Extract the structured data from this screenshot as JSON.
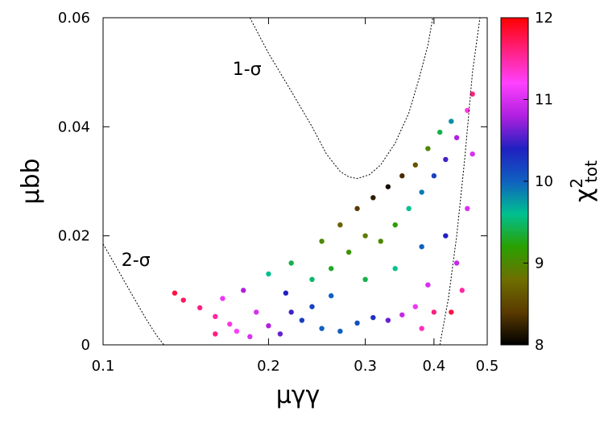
{
  "chart_data": {
    "type": "scatter",
    "title": "",
    "xlabel": "μγγ",
    "ylabel": "μbb",
    "xscale": "log",
    "xlim": [
      0.1,
      0.5
    ],
    "ylim": [
      0,
      0.06
    ],
    "xticks": [
      {
        "value": 0.1,
        "label": "0.1"
      },
      {
        "value": 0.2,
        "label": "0.2"
      },
      {
        "value": 0.3,
        "label": "0.3"
      },
      {
        "value": 0.4,
        "label": "0.4"
      },
      {
        "value": 0.5,
        "label": "0.5"
      }
    ],
    "yticks": [
      {
        "value": 0,
        "label": "0"
      },
      {
        "value": 0.02,
        "label": "0.02"
      },
      {
        "value": 0.04,
        "label": "0.04"
      },
      {
        "value": 0.06,
        "label": "0.06"
      }
    ],
    "colorbar": {
      "label_main": "χ",
      "label_sup": "2",
      "label_sub": "tot",
      "range": [
        8,
        12
      ],
      "ticks": [
        {
          "value": 8,
          "label": "8"
        },
        {
          "value": 9,
          "label": "9"
        },
        {
          "value": 10,
          "label": "10"
        },
        {
          "value": 11,
          "label": "11"
        },
        {
          "value": 12,
          "label": "12"
        }
      ],
      "colors": [
        "#000000",
        "#5a3a00",
        "#6f6f00",
        "#2aa000",
        "#00c090",
        "#1060c0",
        "#2020c0",
        "#b020e0",
        "#ff40ff",
        "#ff2080",
        "#ff0000"
      ]
    },
    "contours": [
      {
        "label": "1-σ",
        "label_at": {
          "x": 0.172,
          "y": 0.0495
        },
        "points": [
          [
            0.185,
            0.06
          ],
          [
            0.2,
            0.0535
          ],
          [
            0.22,
            0.0465
          ],
          [
            0.24,
            0.04
          ],
          [
            0.255,
            0.035
          ],
          [
            0.27,
            0.0318
          ],
          [
            0.28,
            0.0308
          ],
          [
            0.29,
            0.0305
          ],
          [
            0.305,
            0.0312
          ],
          [
            0.32,
            0.033
          ],
          [
            0.34,
            0.037
          ],
          [
            0.36,
            0.0425
          ],
          [
            0.375,
            0.0485
          ],
          [
            0.39,
            0.055
          ],
          [
            0.398,
            0.06
          ]
        ]
      },
      {
        "label": "2-σ",
        "label_at": {
          "x": 0.108,
          "y": 0.0145
        },
        "points": [
          [
            0.1,
            0.0185
          ],
          [
            0.105,
            0.0148
          ],
          [
            0.11,
            0.0112
          ],
          [
            0.115,
            0.0078
          ],
          [
            0.12,
            0.0046
          ],
          [
            0.125,
            0.0018
          ],
          [
            0.129,
            0.0
          ]
        ]
      },
      {
        "label": "",
        "points": [
          [
            0.41,
            0.0
          ],
          [
            0.425,
            0.0085
          ],
          [
            0.44,
            0.02
          ],
          [
            0.455,
            0.034
          ],
          [
            0.47,
            0.05
          ],
          [
            0.485,
            0.06
          ]
        ]
      }
    ],
    "series": [
      {
        "points": [
          [
            0.135,
            0.0095,
            11.8
          ],
          [
            0.14,
            0.0082,
            11.7
          ],
          [
            0.15,
            0.0068,
            11.6
          ],
          [
            0.16,
            0.0052,
            11.5
          ],
          [
            0.17,
            0.0038,
            11.3
          ],
          [
            0.175,
            0.0025,
            11.2
          ],
          [
            0.185,
            0.0015,
            11.0
          ],
          [
            0.19,
            0.006,
            11.0
          ],
          [
            0.165,
            0.0085,
            11.1
          ],
          [
            0.2,
            0.0035,
            10.8
          ],
          [
            0.21,
            0.002,
            10.6
          ],
          [
            0.215,
            0.0095,
            10.4
          ],
          [
            0.23,
            0.0045,
            10.2
          ],
          [
            0.25,
            0.003,
            10.0
          ],
          [
            0.27,
            0.0025,
            10.0
          ],
          [
            0.29,
            0.004,
            10.1
          ],
          [
            0.31,
            0.005,
            10.3
          ],
          [
            0.33,
            0.0045,
            10.6
          ],
          [
            0.35,
            0.0055,
            10.9
          ],
          [
            0.37,
            0.007,
            11.1
          ],
          [
            0.38,
            0.003,
            11.4
          ],
          [
            0.39,
            0.011,
            11.0
          ],
          [
            0.4,
            0.006,
            11.6
          ],
          [
            0.2,
            0.013,
            9.6
          ],
          [
            0.22,
            0.015,
            9.4
          ],
          [
            0.24,
            0.012,
            9.5
          ],
          [
            0.26,
            0.014,
            9.3
          ],
          [
            0.28,
            0.017,
            9.1
          ],
          [
            0.3,
            0.02,
            8.9
          ],
          [
            0.32,
            0.019,
            9.0
          ],
          [
            0.34,
            0.022,
            9.2
          ],
          [
            0.36,
            0.025,
            9.6
          ],
          [
            0.38,
            0.028,
            9.9
          ],
          [
            0.4,
            0.031,
            10.2
          ],
          [
            0.42,
            0.034,
            10.5
          ],
          [
            0.44,
            0.038,
            10.8
          ],
          [
            0.46,
            0.043,
            11.3
          ],
          [
            0.47,
            0.046,
            11.6
          ],
          [
            0.25,
            0.019,
            9.0
          ],
          [
            0.27,
            0.022,
            8.7
          ],
          [
            0.29,
            0.025,
            8.4
          ],
          [
            0.31,
            0.027,
            8.2
          ],
          [
            0.33,
            0.029,
            8.1
          ],
          [
            0.35,
            0.031,
            8.3
          ],
          [
            0.37,
            0.033,
            8.6
          ],
          [
            0.39,
            0.036,
            9.0
          ],
          [
            0.41,
            0.039,
            9.4
          ],
          [
            0.43,
            0.041,
            9.8
          ],
          [
            0.3,
            0.012,
            9.4
          ],
          [
            0.34,
            0.014,
            9.6
          ],
          [
            0.38,
            0.018,
            10.0
          ],
          [
            0.42,
            0.02,
            10.4
          ],
          [
            0.44,
            0.015,
            10.9
          ],
          [
            0.46,
            0.025,
            11.0
          ],
          [
            0.45,
            0.01,
            11.5
          ],
          [
            0.43,
            0.006,
            11.8
          ],
          [
            0.47,
            0.035,
            11.0
          ],
          [
            0.24,
            0.007,
            10.2
          ],
          [
            0.26,
            0.009,
            10.0
          ],
          [
            0.22,
            0.006,
            10.5
          ],
          [
            0.18,
            0.01,
            10.8
          ],
          [
            0.16,
            0.002,
            11.6
          ]
        ]
      }
    ]
  }
}
